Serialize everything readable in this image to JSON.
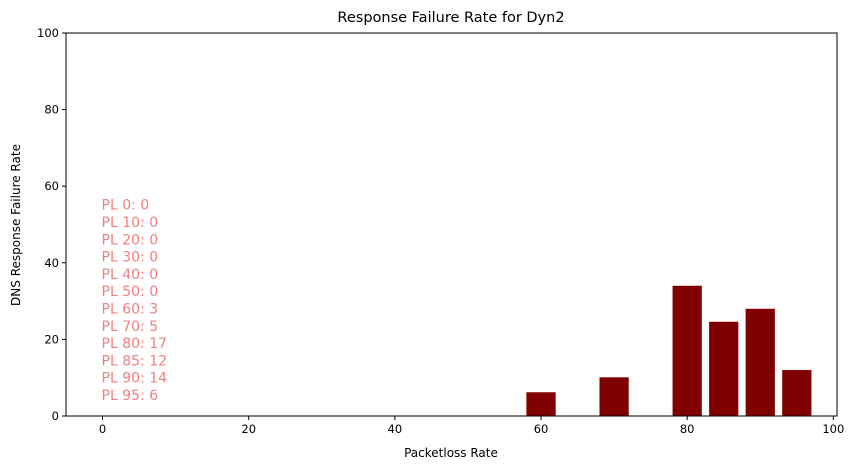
{
  "chart_data": {
    "type": "bar",
    "title": "Response Failure Rate for Dyn2",
    "xlabel": "Packetloss Rate",
    "ylabel": "DNS Response Failure Rate",
    "x": [
      60,
      70,
      80,
      85,
      90,
      95
    ],
    "values": [
      6.2,
      10.1,
      34.0,
      24.6,
      28.0,
      12.0
    ],
    "bar_width": 4,
    "xlim": [
      -5,
      100.5
    ],
    "ylim": [
      0,
      100
    ],
    "xticks": [
      0,
      20,
      40,
      60,
      80,
      100
    ],
    "yticks": [
      0,
      20,
      40,
      60,
      80,
      100
    ],
    "bar_color": "#800000",
    "annotation_color": "#f08080",
    "grid": false,
    "annotations": [
      "PL 0: 0",
      "PL 10: 0",
      "PL 20: 0",
      "PL 30: 0",
      "PL 40: 0",
      "PL 50: 0",
      "PL 60: 3",
      "PL 70: 5",
      "PL 80: 17",
      "PL 85: 12",
      "PL 90: 14",
      "PL 95: 6"
    ]
  }
}
